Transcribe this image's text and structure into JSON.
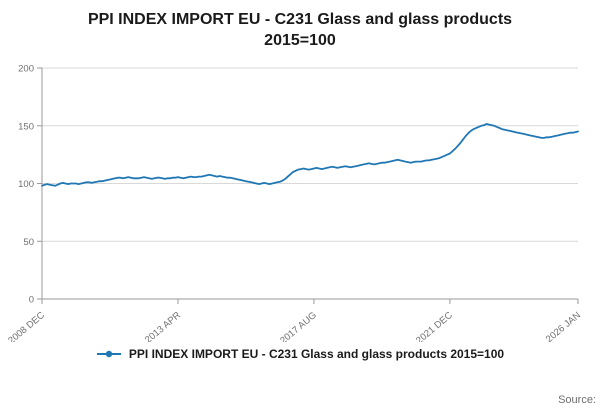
{
  "page": {
    "title_line1": "PPI INDEX IMPORT EU - C231 Glass and glass products",
    "title_line2": "2015=100",
    "source_label": "Source:"
  },
  "legend": {
    "label": "PPI INDEX IMPORT EU - C231 Glass and glass products 2015=100"
  },
  "chart_data": {
    "type": "line",
    "title": "PPI INDEX IMPORT EU - C231 Glass and glass products 2015=100",
    "x_start": "2008-12",
    "x_end": "2026-01",
    "frequency": "monthly",
    "x_tick_labels": [
      "2008 DEC",
      "2013 APR",
      "2017 AUG",
      "2021 DEC",
      "2026 JAN"
    ],
    "x_tick_indices": [
      0,
      52,
      104,
      156,
      205
    ],
    "y_ticks": [
      0,
      50,
      100,
      150,
      200
    ],
    "ylim": [
      0,
      200
    ],
    "grid": true,
    "legend_position": "bottom",
    "colors": {
      "line": "#1f77b4",
      "grid": "#d9d9d9",
      "axis": "#9a9a9a",
      "tick_label": "#707071"
    },
    "series": [
      {
        "name": "PPI INDEX IMPORT EU - C231 Glass and glass products 2015=100",
        "values": [
          98,
          99,
          99.5,
          99,
          98.5,
          98,
          99,
          100,
          100.5,
          100,
          99.5,
          100,
          100,
          100,
          99.5,
          100,
          100.5,
          101,
          101,
          100.5,
          101,
          101.5,
          102,
          102,
          102.5,
          103,
          103.5,
          104,
          104.5,
          105,
          105,
          104.5,
          105,
          105.5,
          105,
          104.5,
          104.5,
          104.5,
          105,
          105.5,
          105,
          104.5,
          104,
          104.5,
          105,
          105,
          104.5,
          104,
          104.5,
          104.5,
          105,
          105,
          105.5,
          105,
          104.5,
          105,
          105.5,
          106,
          105.5,
          105.5,
          106,
          106,
          106.5,
          107,
          107.5,
          107,
          106.5,
          106,
          106.5,
          106,
          105.5,
          105,
          105,
          104.5,
          104,
          103.5,
          103,
          102.5,
          102,
          101.5,
          101,
          100.5,
          100,
          99.5,
          100,
          100.5,
          100,
          99.5,
          100,
          100.5,
          101,
          101.5,
          102.5,
          104,
          106,
          108,
          110,
          111,
          112,
          112.5,
          113,
          112.5,
          112,
          112.5,
          113,
          113.5,
          113,
          112.5,
          113,
          113.5,
          114,
          114.5,
          114,
          113.5,
          114,
          114.5,
          115,
          114.5,
          114,
          114.5,
          115,
          115.5,
          116,
          116.5,
          117,
          117.5,
          117,
          116.5,
          117,
          117.5,
          118,
          118,
          118.5,
          119,
          119.5,
          120,
          120.5,
          120,
          119.5,
          119,
          118.5,
          118,
          118.5,
          119,
          119,
          119,
          119.5,
          120,
          120,
          120.5,
          121,
          121.5,
          122,
          123,
          124,
          125,
          126,
          128,
          130,
          132.5,
          135,
          138,
          141,
          143.5,
          145.5,
          147,
          148,
          149,
          150,
          150.5,
          151.5,
          151,
          150.5,
          150,
          149,
          148,
          147,
          146.5,
          146,
          145.5,
          145,
          144.5,
          144,
          143.5,
          143,
          142.5,
          142,
          141.5,
          141,
          140.5,
          140,
          139.5,
          139.5,
          140,
          140,
          140.5,
          141,
          141.5,
          142,
          142.5,
          143,
          143.5,
          144,
          144,
          144.5,
          145
        ]
      }
    ]
  }
}
